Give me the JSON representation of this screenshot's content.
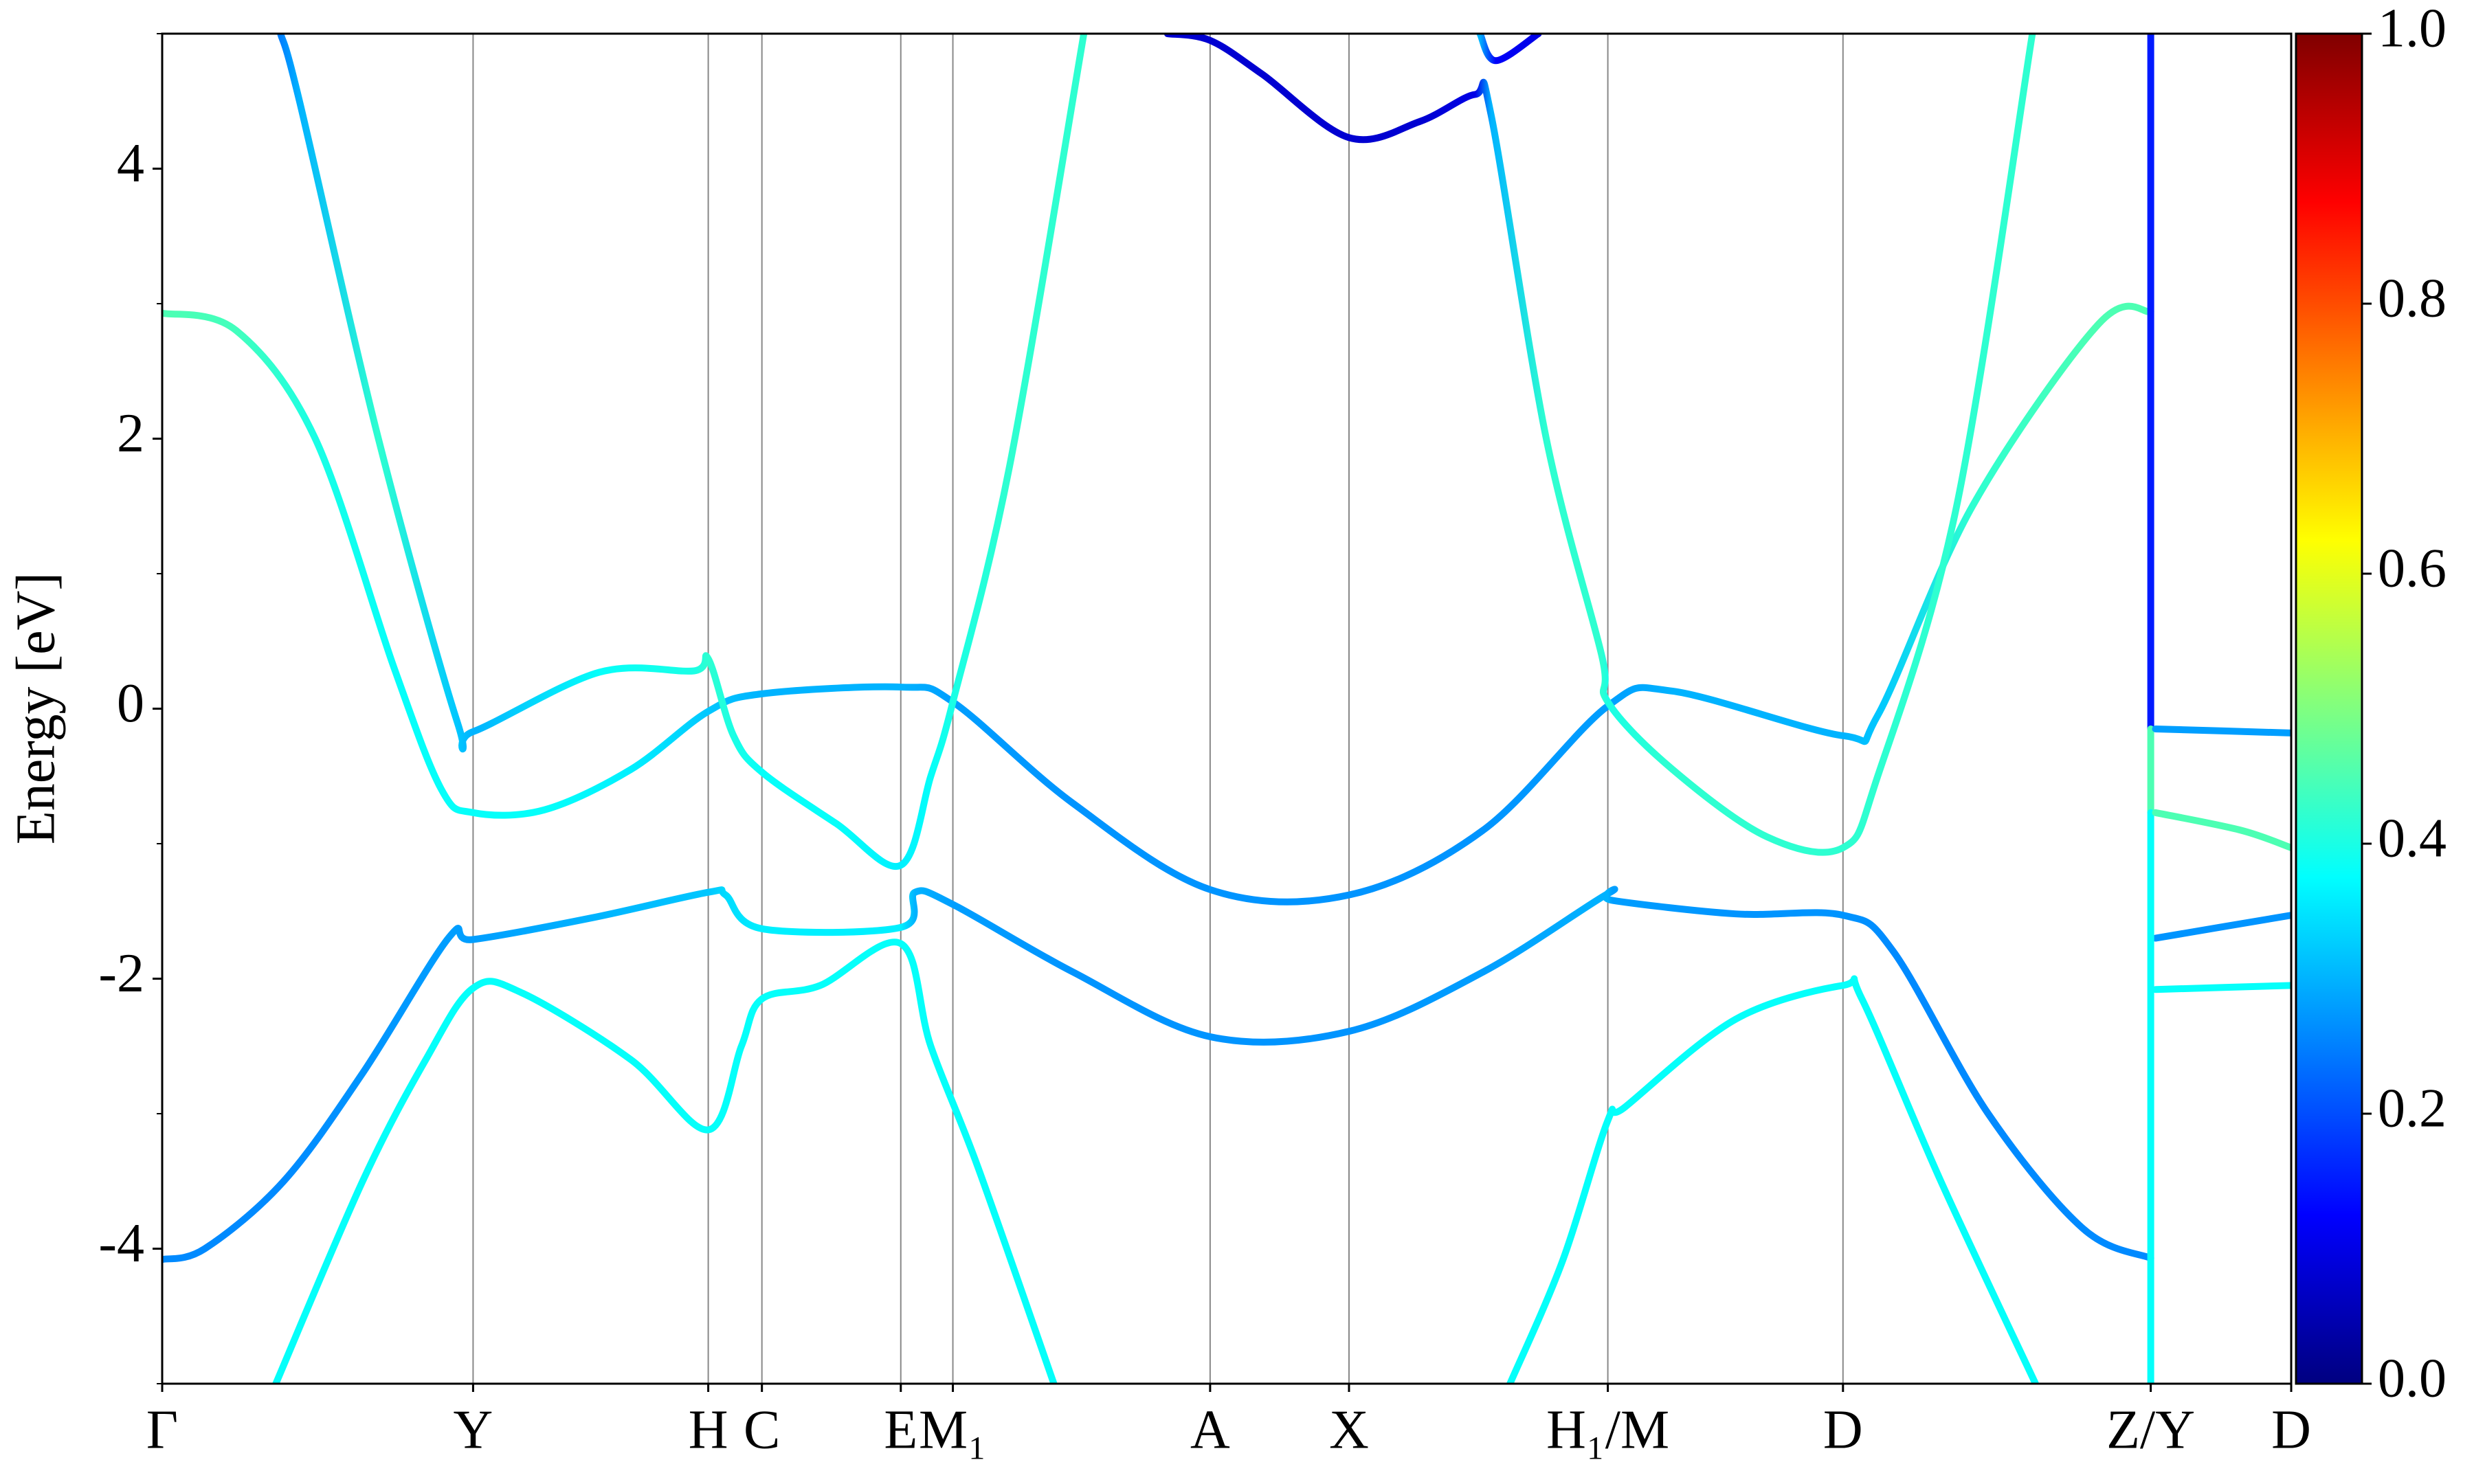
{
  "chart_data": {
    "type": "bands",
    "y_label": "Energy [eV]",
    "xlim": [
      0,
      1.349
    ],
    "ylim": [
      -5,
      5
    ],
    "xticks": [
      {
        "value": 0,
        "label": "Γ"
      },
      {
        "value": 0.197,
        "label": "Y"
      },
      {
        "value": 0.346,
        "label": "H"
      },
      {
        "value": 0.38,
        "label": "C"
      },
      {
        "value": 0.468,
        "label": "E"
      },
      {
        "value": 0.501,
        "label": "M₁"
      },
      {
        "value": 0.664,
        "label": "A"
      },
      {
        "value": 0.752,
        "label": "X"
      },
      {
        "value": 0.916,
        "label": "H₁/M"
      },
      {
        "value": 1.065,
        "label": "D"
      },
      {
        "value": 1.26,
        "label": "Z/Y"
      },
      {
        "value": 1.349,
        "label": "D"
      }
    ],
    "yticks": [
      -4,
      -2,
      0,
      2,
      4
    ],
    "yminorticks": [
      -5,
      -3,
      -1,
      1,
      3,
      5
    ],
    "grid": true,
    "colormap": "jet",
    "clim": [
      0,
      1
    ],
    "cticks": [
      {
        "value": 0,
        "label": "0.0"
      },
      {
        "value": 0.2,
        "label": "0.2"
      },
      {
        "value": 0.4,
        "label": "0.4"
      },
      {
        "value": 0.6,
        "label": "0.6"
      },
      {
        "value": 0.8,
        "label": "0.8"
      },
      {
        "value": 1,
        "label": "1.0"
      }
    ],
    "series": [
      {
        "x": [
          0,
          0.027,
          0.077,
          0.127,
          0.182,
          0.197,
          0.272,
          0.346,
          0.357,
          0.38,
          0.468,
          0.477,
          0.501,
          0.577,
          0.664,
          0.752,
          0.837,
          0.916,
          0.919,
          0.997,
          1.065,
          1.097,
          1.157,
          1.217,
          1.26
        ],
        "values": [
          -4.08,
          -4.0,
          -3.5,
          -2.7,
          -1.69,
          -1.71,
          -1.55,
          -1.36,
          -1.38,
          -1.63,
          -1.62,
          -1.36,
          -1.45,
          -1.95,
          -2.43,
          -2.39,
          -1.95,
          -1.37,
          -1.42,
          -1.52,
          -1.53,
          -1.8,
          -3.0,
          -3.85,
          -4.07
        ],
        "weights": [
          0.26,
          0.26,
          0.26,
          0.27,
          0.28,
          0.28,
          0.3,
          0.32,
          0.34,
          0.36,
          0.36,
          0.3,
          0.28,
          0.27,
          0.27,
          0.27,
          0.28,
          0.3,
          0.28,
          0.27,
          0.27,
          0.26,
          0.26,
          0.26,
          0.26
        ]
      },
      {
        "x": [
          0.072,
          0.127,
          0.167,
          0.197,
          0.227,
          0.297,
          0.346,
          0.367,
          0.38,
          0.417,
          0.468,
          0.487,
          0.517,
          0.565
        ],
        "values": [
          -5,
          -3.5,
          -2.6,
          -2.07,
          -2.1,
          -2.6,
          -3.12,
          -2.5,
          -2.15,
          -2.05,
          -1.74,
          -2.5,
          -3.4,
          -5
        ],
        "weights": [
          0.38,
          0.38,
          0.38,
          0.38,
          0.38,
          0.38,
          0.38,
          0.38,
          0.38,
          0.38,
          0.38,
          0.38,
          0.38,
          0.38
        ]
      },
      {
        "x": [
          0.854,
          0.887,
          0.916,
          0.927,
          0.997,
          1.065,
          1.077,
          1.127,
          1.187
        ],
        "values": [
          -5,
          -4.1,
          -3.05,
          -2.95,
          -2.3,
          -2.05,
          -2.15,
          -3.5,
          -5
        ],
        "weights": [
          0.38,
          0.38,
          0.38,
          0.38,
          0.38,
          0.38,
          0.38,
          0.38,
          0.38
        ]
      },
      {
        "x": [
          1.263,
          1.349
        ],
        "values": [
          -2.08,
          -2.05
        ],
        "weights": [
          0.38,
          0.38
        ]
      },
      {
        "x": [
          1.263,
          1.349
        ],
        "values": [
          -1.7,
          -1.53
        ],
        "weights": [
          0.27,
          0.27
        ]
      },
      {
        "x": [
          0,
          0.047,
          0.097,
          0.147,
          0.177,
          0.197,
          0.242,
          0.297,
          0.346,
          0.38,
          0.468,
          0.501,
          0.577,
          0.664,
          0.752,
          0.837,
          0.916,
          0.957,
          1.065,
          1.087,
          1.147,
          1.227,
          1.26
        ],
        "values": [
          2.93,
          2.8,
          2.0,
          0.3,
          -0.6,
          -0.77,
          -0.75,
          -0.45,
          -0.02,
          0.11,
          0.16,
          0.05,
          -0.7,
          -1.34,
          -1.38,
          -0.9,
          0.02,
          0.13,
          -0.2,
          -0.05,
          1.5,
          2.85,
          2.94
        ],
        "weights": [
          0.45,
          0.44,
          0.4,
          0.38,
          0.38,
          0.38,
          0.38,
          0.36,
          0.32,
          0.3,
          0.3,
          0.28,
          0.27,
          0.27,
          0.27,
          0.27,
          0.28,
          0.3,
          0.3,
          0.32,
          0.42,
          0.45,
          0.45
        ]
      },
      {
        "x": [
          0.075,
          0.087,
          0.137,
          0.187,
          0.197,
          0.277,
          0.337,
          0.346,
          0.362,
          0.38,
          0.427,
          0.468,
          0.487,
          0.501,
          0.537,
          0.584
        ],
        "values": [
          5,
          4.5,
          2.0,
          -0.1,
          -0.17,
          0.27,
          0.28,
          0.37,
          -0.2,
          -0.47,
          -0.85,
          -1.16,
          -0.5,
          0.05,
          1.8,
          5
        ],
        "weights": [
          0.25,
          0.3,
          0.42,
          0.32,
          0.3,
          0.38,
          0.4,
          0.42,
          0.4,
          0.38,
          0.38,
          0.36,
          0.38,
          0.4,
          0.42,
          0.42
        ]
      },
      {
        "x": [
          0.835,
          0.845,
          0.872
        ],
        "values": [
          5,
          4.8,
          5
        ],
        "weights": [
          0.3,
          0.12,
          0.1
        ]
      },
      {
        "x": [
          0.637,
          0.664,
          0.697,
          0.752,
          0.797,
          0.832,
          0.842,
          0.877,
          0.912,
          0.916,
          0.957,
          1.017,
          1.065,
          1.087,
          1.137,
          1.185
        ],
        "values": [
          5.0,
          4.95,
          4.7,
          4.23,
          4.35,
          4.55,
          4.4,
          2.0,
          0.4,
          0.05,
          -0.45,
          -0.95,
          -1.03,
          -0.5,
          1.5,
          5
        ],
        "weights": [
          0.08,
          0.08,
          0.08,
          0.08,
          0.08,
          0.1,
          0.3,
          0.42,
          0.42,
          0.4,
          0.42,
          0.42,
          0.42,
          0.42,
          0.42,
          0.42
        ]
      },
      {
        "x": [
          1.26,
          1.26
        ],
        "values": [
          5,
          -0.15
        ],
        "weights": [
          0.15,
          0.15
        ]
      },
      {
        "x": [
          1.26,
          1.26
        ],
        "values": [
          -0.15,
          -0.77
        ],
        "weights": [
          0.45,
          0.45
        ]
      },
      {
        "x": [
          1.26,
          1.26
        ],
        "values": [
          -0.77,
          -5
        ],
        "weights": [
          0.38,
          0.38
        ]
      },
      {
        "x": [
          1.263,
          1.349
        ],
        "values": [
          -0.15,
          -0.18
        ],
        "weights": [
          0.28,
          0.28
        ]
      },
      {
        "x": [
          1.263,
          1.317,
          1.349
        ],
        "values": [
          -0.77,
          -0.9,
          -1.03
        ],
        "weights": [
          0.45,
          0.45,
          0.45
        ]
      }
    ]
  }
}
